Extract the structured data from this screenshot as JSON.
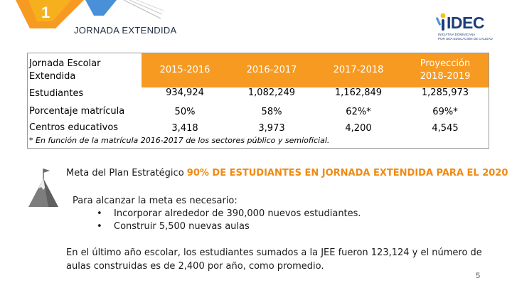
{
  "header": {
    "slide_number": "1",
    "section_title": "JORNADA EXTENDIDA",
    "logo_text": "IDEC",
    "logo_sub": [
      "INICIATIVA DOMINICANA",
      "POR UNA EDUCACIÓN DE CALIDAD"
    ]
  },
  "table": {
    "corner_label": [
      "Jornada Escolar",
      "Extendida"
    ],
    "years": [
      {
        "label": [
          "2015-2016"
        ]
      },
      {
        "label": [
          "2016-2017"
        ]
      },
      {
        "label": [
          "2017-2018"
        ]
      },
      {
        "label": [
          "Proyección",
          "2018-2019"
        ]
      }
    ],
    "rows": [
      {
        "label": "Estudiantes",
        "values": [
          "934,924",
          "1,082,249",
          "1,162,849",
          "1,285,973"
        ]
      },
      {
        "label": "Porcentaje matrícula",
        "values": [
          "50%",
          "58%",
          "62%*",
          "69%*"
        ]
      },
      {
        "label": "Centros educativos",
        "values": [
          "3,418",
          "3,973",
          "4,200",
          "4,545"
        ]
      }
    ],
    "footnote": "* En función de la matrícula 2016-2017 de los sectores público y semioficial."
  },
  "goal": {
    "prefix": "Meta del Plan Estratégico ",
    "highlight": "90% DE ESTUDIANTES EN JORNADA EXTENDIDA PARA EL 2020"
  },
  "reach": {
    "intro": "Para alcanzar la meta es necesario:",
    "bullet_glyph": "•",
    "items": [
      "Incorporar alrededor de 390,000 nuevos estudiantes.",
      "Construir 5,500 nuevas aulas"
    ]
  },
  "closing": "En el último año escolar, los estudiantes sumados a la JEE fueron 123,124 y el número de aulas construidas es de 2,400 por año, como promedio.",
  "page_number": "5",
  "colors": {
    "accent_orange": "#f79a22",
    "tab_yellow": "#f6c21c",
    "brand_blue": "#1c3d7a",
    "deco_blue": "#4a90d9"
  }
}
